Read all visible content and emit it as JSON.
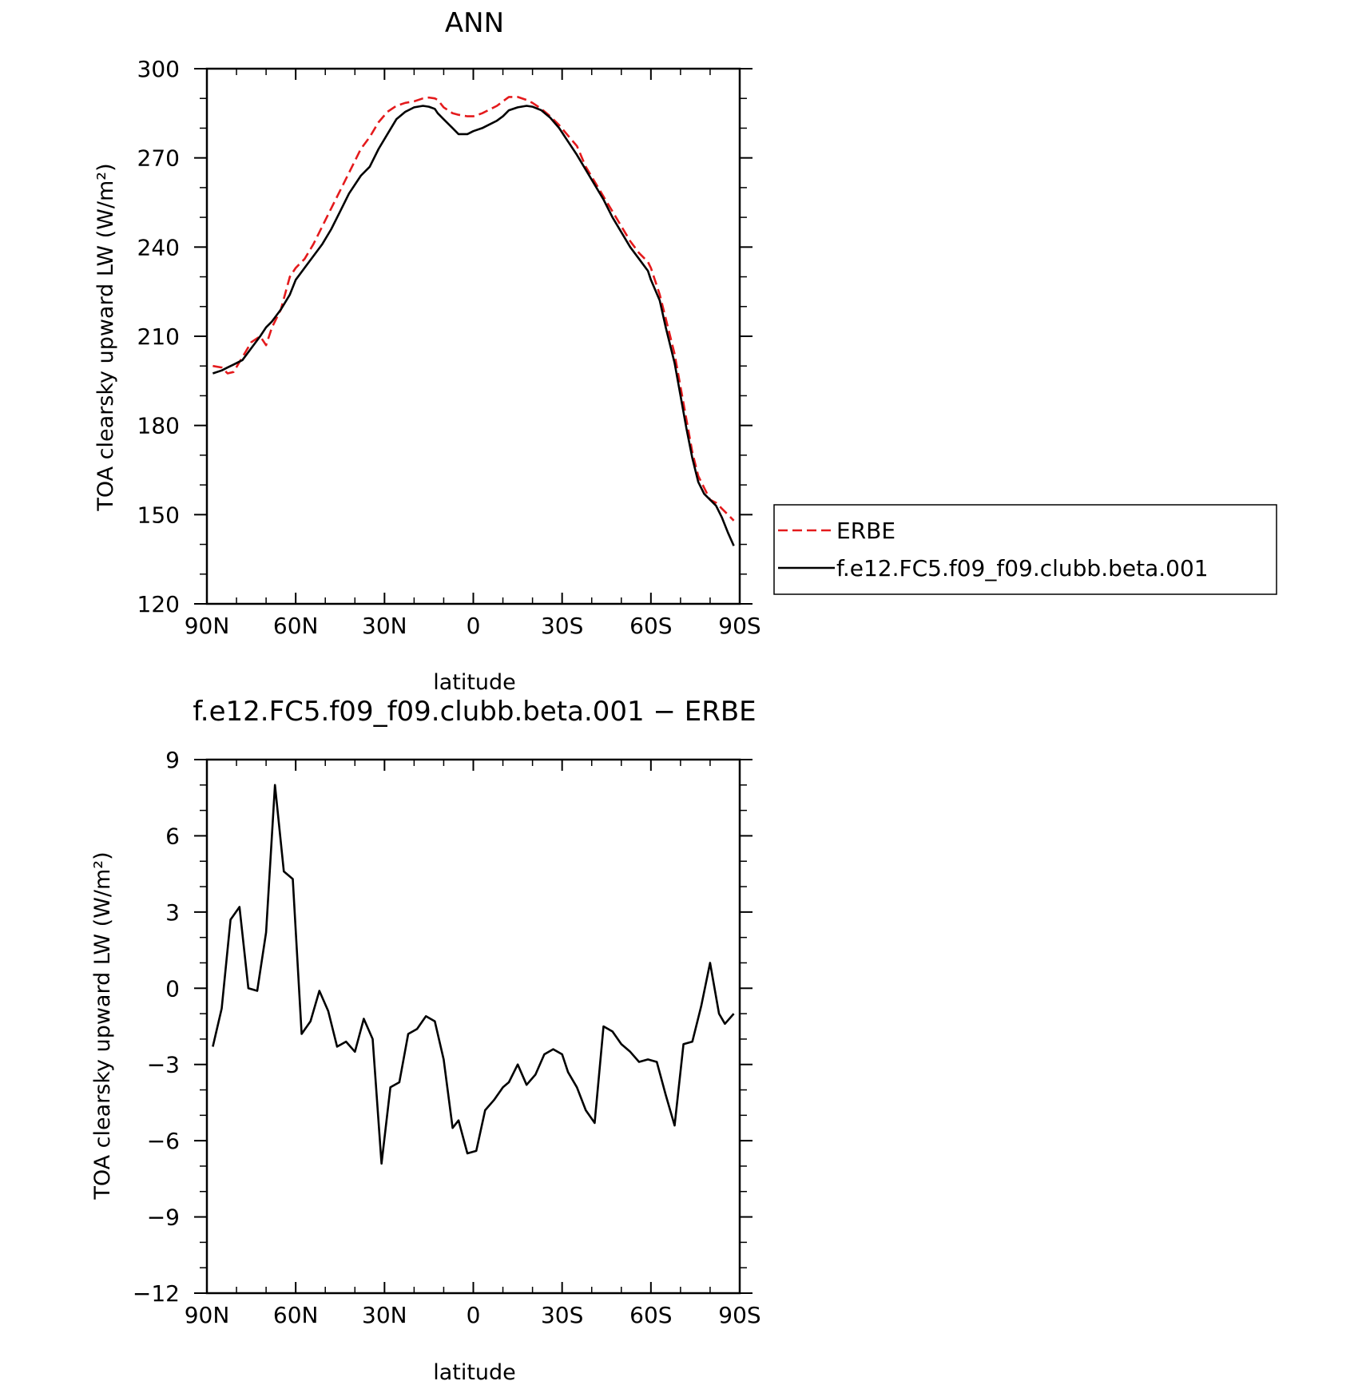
{
  "chart_data": [
    {
      "type": "line",
      "title": "ANN",
      "xlabel": "latitude",
      "ylabel": "TOA clearsky upward LW (W/m²)",
      "xlim": [
        90,
        -90
      ],
      "ylim": [
        120,
        300
      ],
      "x_ticks": [
        "90N",
        "60N",
        "30N",
        "0",
        "30S",
        "60S",
        "90S"
      ],
      "y_ticks": [
        "300",
        "270",
        "240",
        "210",
        "180",
        "150",
        "120"
      ],
      "legend_position": "right",
      "series": [
        {
          "name": "ERBE",
          "color": "#e41a1c",
          "style": "dashed",
          "x": [
            88,
            85,
            83,
            81,
            78,
            75,
            72,
            70,
            68,
            65,
            62,
            60,
            57,
            54,
            51,
            48,
            45,
            42,
            38,
            35,
            32,
            29,
            26,
            23,
            20,
            17,
            15,
            13,
            12,
            10,
            7,
            5,
            2,
            0,
            -3,
            -5,
            -8,
            -10,
            -12,
            -15,
            -18,
            -20,
            -23,
            -26,
            -29,
            -32,
            -35,
            -38,
            -41,
            -44,
            -47,
            -50,
            -53,
            -56,
            -59,
            -60,
            -63,
            -65,
            -68,
            -70,
            -72,
            -74,
            -76,
            -78,
            -80,
            -82,
            -84,
            -86,
            -88
          ],
          "values": [
            200,
            199.5,
            197.5,
            198,
            203,
            208,
            210,
            207,
            213,
            219,
            230,
            233,
            236,
            241,
            247,
            253,
            259,
            265,
            273,
            277,
            282,
            285.5,
            287.5,
            288.5,
            289,
            290,
            290.3,
            290,
            289.5,
            287,
            285,
            284.5,
            284,
            284,
            285,
            286,
            287.5,
            289,
            290.5,
            290.5,
            289.5,
            288.5,
            286.5,
            284,
            281,
            277.5,
            274,
            267,
            262,
            257,
            252,
            247,
            242,
            238,
            235,
            233,
            224,
            216,
            204,
            193,
            182,
            171,
            163,
            159,
            155,
            154,
            152,
            150,
            148
          ]
        },
        {
          "name": "f.e12.FC5.f09_f09.clubb.beta.001",
          "color": "#000000",
          "style": "solid",
          "x": [
            88,
            85,
            83,
            81,
            78,
            75,
            72,
            70,
            68,
            65,
            62,
            60,
            57,
            54,
            51,
            48,
            45,
            42,
            38,
            35,
            32,
            29,
            26,
            23,
            20,
            17,
            15,
            13,
            12,
            10,
            7,
            5,
            2,
            0,
            -3,
            -5,
            -8,
            -10,
            -12,
            -15,
            -18,
            -20,
            -23,
            -26,
            -29,
            -32,
            -35,
            -38,
            -41,
            -44,
            -47,
            -50,
            -53,
            -56,
            -59,
            -60,
            -63,
            -65,
            -68,
            -70,
            -72,
            -74,
            -76,
            -78,
            -80,
            -82,
            -84,
            -86,
            -88
          ],
          "values": [
            197.5,
            198.5,
            199.5,
            200.5,
            202,
            206,
            210,
            213,
            215,
            219,
            224,
            229,
            233,
            237,
            241,
            246,
            252,
            258,
            264,
            267,
            273,
            278,
            283,
            285.5,
            287,
            287.5,
            287.2,
            286.5,
            285,
            283,
            280,
            278,
            278,
            279,
            280,
            281,
            282.5,
            284,
            286,
            287,
            287.5,
            287.2,
            286,
            283.5,
            280,
            275.5,
            271,
            266,
            261,
            256,
            250,
            245,
            240,
            236,
            232,
            229,
            222,
            213,
            201,
            190,
            179,
            169,
            161,
            157,
            155,
            153,
            149,
            144,
            139.5
          ]
        }
      ]
    },
    {
      "type": "line",
      "title": "f.e12.FC5.f09_f09.clubb.beta.001 − ERBE",
      "xlabel": "latitude",
      "ylabel": "TOA clearsky upward LW (W/m²)",
      "xlim": [
        90,
        -90
      ],
      "ylim": [
        -12,
        9
      ],
      "x_ticks": [
        "90N",
        "60N",
        "30N",
        "0",
        "30S",
        "60S",
        "90S"
      ],
      "y_ticks": [
        "9",
        "6",
        "3",
        "0",
        "−3",
        "−6",
        "−9",
        "−12"
      ],
      "series": [
        {
          "color": "#000000",
          "style": "solid",
          "x": [
            88,
            85,
            82,
            79,
            76,
            73,
            70,
            67,
            64,
            61,
            58,
            55,
            52,
            49,
            46,
            43,
            40,
            37,
            34,
            31,
            28,
            25,
            22,
            19,
            16,
            13,
            10,
            7,
            5,
            2,
            -1,
            -4,
            -7,
            -10,
            -12,
            -15,
            -18,
            -21,
            -24,
            -27,
            -30,
            -32,
            -35,
            -38,
            -41,
            -44,
            -47,
            -50,
            -53,
            -56,
            -59,
            -62,
            -65,
            -68,
            -71,
            -74,
            -77,
            -80,
            -83,
            -85,
            -88
          ],
          "values": [
            -2.3,
            -0.8,
            2.7,
            3.2,
            0.0,
            -0.1,
            2.2,
            8.0,
            4.6,
            4.3,
            -1.8,
            -1.3,
            -0.1,
            -0.9,
            -2.3,
            -2.1,
            -2.5,
            -1.2,
            -2.0,
            -6.9,
            -3.9,
            -3.7,
            -1.8,
            -1.6,
            -1.1,
            -1.3,
            -2.8,
            -5.5,
            -5.2,
            -6.5,
            -6.4,
            -4.8,
            -4.4,
            -3.9,
            -3.7,
            -3.0,
            -3.8,
            -3.4,
            -2.6,
            -2.4,
            -2.6,
            -3.3,
            -3.9,
            -4.8,
            -5.3,
            -1.5,
            -1.7,
            -2.2,
            -2.5,
            -2.9,
            -2.8,
            -2.9,
            -4.2,
            -5.4,
            -2.2,
            -2.1,
            -0.7,
            1.0,
            -1.0,
            -1.4,
            -1.0
          ]
        }
      ]
    }
  ],
  "legend": [
    {
      "label": "ERBE",
      "style": "dashed",
      "color": "#e41a1c"
    },
    {
      "label": "f.e12.FC5.f09_f09.clubb.beta.001",
      "style": "solid",
      "color": "#000000"
    }
  ]
}
